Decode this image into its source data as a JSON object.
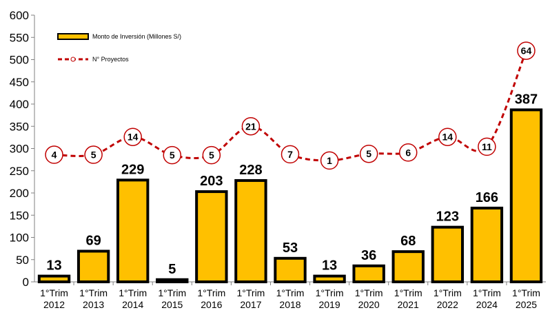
{
  "chart_data": {
    "type": "bar",
    "categories": [
      [
        "1°Trim",
        "2012"
      ],
      [
        "1°Trim",
        "2013"
      ],
      [
        "1°Trim",
        "2014"
      ],
      [
        "1°Trim",
        "2015"
      ],
      [
        "1°Trim",
        "2016"
      ],
      [
        "1°Trim",
        "2017"
      ],
      [
        "1°Trim",
        "2018"
      ],
      [
        "1°Trim",
        "2019"
      ],
      [
        "1°Trim",
        "2020"
      ],
      [
        "1°Trim",
        "2021"
      ],
      [
        "1°Trim",
        "2022"
      ],
      [
        "1°Trim",
        "2024"
      ],
      [
        "1°Trim",
        "2025"
      ]
    ],
    "series": [
      {
        "name": "Monto de Inversión (Millones S/)",
        "type": "bar",
        "axis": "left",
        "values": [
          13,
          69,
          229,
          5,
          203,
          228,
          53,
          13,
          36,
          68,
          123,
          166,
          387
        ],
        "color": "#FFC000",
        "edge_color": "#000000"
      },
      {
        "name": "N° Proyectos",
        "type": "line",
        "style": "dashed",
        "axis": "secondary-hidden",
        "values": [
          4,
          5,
          14,
          5,
          5,
          21,
          7,
          1,
          5,
          6,
          14,
          11,
          64
        ],
        "color": "#C00000",
        "display_positions_left_axis": [
          286,
          286,
          326,
          285,
          285,
          350,
          287,
          273,
          288,
          291,
          326,
          304,
          520
        ]
      }
    ],
    "y_ticks": [
      "0",
      "50",
      "100",
      "150",
      "200",
      "250",
      "300",
      "350",
      "400",
      "450",
      "500",
      "550",
      "600"
    ],
    "ylim": [
      0,
      600
    ],
    "grid": false,
    "legend": "top-left"
  }
}
